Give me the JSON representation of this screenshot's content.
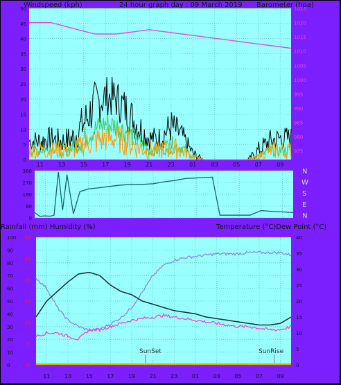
{
  "header": {
    "left_label": "Windspeed (kph)",
    "title": "24 hour graph day : 09 March 2019",
    "right_label": "Barometer (hpa)"
  },
  "lower_header": {
    "left_label": "Rainfall (mm)  Humidity (%)",
    "right_label": "Temperature (°C)Dew Point (°C)"
  },
  "colors": {
    "frame": "#7b1fff",
    "plot_bg": "#99ffff",
    "grid": "#66c2c2",
    "wind_gust": "#000000",
    "wind_avg": "#ff9900",
    "wind_light": "#33cc66",
    "barometer": "#ee44ee",
    "direction": "#1d5e7a",
    "temperature": "#1a3a3a",
    "dew_point": "#ee44ee",
    "humidity": "#8888ee",
    "rain_axis": "#ff2222",
    "text": "#111111"
  },
  "chart_data": [
    {
      "type": "line",
      "title": "24 hour graph day : 09 March 2019",
      "x_tick_labels": [
        "11",
        "13",
        "15",
        "17",
        "19",
        "21",
        "23",
        "01",
        "03",
        "05",
        "07",
        "09"
      ],
      "x_hours_elapsed": [
        0,
        24
      ],
      "left_axis": {
        "label": "Windspeed (kph)",
        "range": [
          0,
          50
        ],
        "ticks": [
          0,
          5,
          10,
          15,
          20,
          25,
          30,
          35,
          40,
          45,
          50
        ]
      },
      "right_axis": {
        "label": "Barometer (hpa)",
        "range": [
          972,
          1025
        ],
        "ticks": [
          975,
          980,
          985,
          990,
          995,
          1000,
          1005,
          1010,
          1015,
          1020,
          1025
        ]
      },
      "series": [
        {
          "name": "Barometer (hpa)",
          "axis": "right",
          "style": "line",
          "x": [
            0,
            1,
            2,
            3,
            4,
            5,
            6,
            7,
            8,
            9,
            10,
            11,
            12,
            13,
            14,
            15,
            16,
            17,
            18,
            19,
            20,
            21,
            22,
            23,
            24
          ],
          "values": [
            1020,
            1020,
            1020,
            1019,
            1018,
            1017,
            1016,
            1016,
            1016,
            1016.5,
            1017,
            1017.5,
            1017,
            1016.5,
            1016,
            1015.5,
            1015,
            1014.5,
            1014,
            1013.5,
            1013,
            1012.5,
            1012,
            1011.5,
            1011
          ]
        },
        {
          "name": "Wind gust",
          "axis": "left",
          "style": "spiky",
          "x": [
            0,
            1,
            2,
            3,
            4,
            5,
            6,
            7,
            8,
            9,
            10,
            11,
            12,
            13,
            14,
            15,
            16,
            17,
            18,
            19,
            20,
            21,
            22,
            23,
            24
          ],
          "values": [
            6,
            6,
            7,
            6,
            7,
            12,
            18,
            21,
            20,
            16,
            11,
            7,
            7,
            11,
            8,
            2,
            0,
            0,
            0,
            0,
            0,
            3,
            6,
            7,
            7
          ],
          "spread": [
            4,
            4,
            4,
            4,
            5,
            7,
            8,
            7,
            7,
            7,
            6,
            4,
            4,
            6,
            4,
            2,
            0,
            0,
            0,
            0,
            0,
            3,
            4,
            4,
            4
          ]
        },
        {
          "name": "Wind light",
          "axis": "left",
          "style": "spiky",
          "x": [
            0,
            1,
            2,
            3,
            4,
            5,
            6,
            7,
            8,
            9,
            10,
            11,
            12,
            13,
            14,
            15,
            16,
            17,
            18,
            19,
            20,
            21,
            22,
            23,
            24
          ],
          "values": [
            3,
            3,
            4,
            3,
            4,
            7,
            10,
            12,
            11,
            9,
            6,
            3,
            3,
            5,
            4,
            1,
            0,
            0,
            0,
            0,
            0,
            1,
            3,
            3,
            3
          ],
          "spread": [
            2,
            2,
            2,
            2,
            3,
            4,
            4,
            4,
            4,
            4,
            3,
            2,
            2,
            3,
            2,
            1,
            0,
            0,
            0,
            0,
            0,
            1,
            2,
            2,
            2
          ]
        },
        {
          "name": "Wind average",
          "axis": "left",
          "style": "spiky",
          "x": [
            0,
            1,
            2,
            3,
            4,
            5,
            6,
            7,
            8,
            9,
            10,
            11,
            12,
            13,
            14,
            15,
            16,
            17,
            18,
            19,
            20,
            21,
            22,
            23,
            24
          ],
          "values": [
            3,
            3,
            3,
            3,
            3,
            5,
            6,
            7,
            7,
            6,
            4,
            3,
            3,
            4,
            3,
            1,
            0,
            0,
            0,
            0,
            0,
            1,
            3,
            3,
            3
          ],
          "spread": [
            3,
            3,
            3,
            3,
            3,
            4,
            5,
            5,
            5,
            5,
            4,
            3,
            3,
            4,
            3,
            1,
            0,
            0,
            0,
            0,
            0,
            1,
            3,
            3,
            3
          ]
        }
      ],
      "grid": true
    },
    {
      "type": "line",
      "title": "",
      "y_labels": [
        "N",
        "W",
        "S",
        "E",
        "N"
      ],
      "left_axis": {
        "range": [
          0,
          360
        ],
        "ticks": [
          0,
          90,
          180,
          270,
          360
        ]
      },
      "series": [
        {
          "name": "Wind direction",
          "axis": "left",
          "style": "line",
          "x": [
            0,
            0.5,
            0.9,
            1.4,
            1.8,
            2.2,
            2.6,
            3.0,
            3.6,
            4.2,
            5.0,
            6.0,
            7.0,
            8.0,
            9.0,
            10.0,
            11.0,
            12.0,
            13.0,
            14.0,
            16.5,
            17.2,
            18.0,
            19.0,
            20.0,
            21.0,
            22.0,
            23.0,
            24.0
          ],
          "values": [
            40,
            10,
            15,
            12,
            20,
            350,
            60,
            330,
            30,
            200,
            220,
            230,
            240,
            250,
            255,
            255,
            260,
            275,
            285,
            300,
            310,
            20,
            20,
            20,
            20,
            55,
            50,
            45,
            40
          ]
        }
      ],
      "grid": true
    },
    {
      "type": "line",
      "title": "",
      "x_tick_labels": [
        "11",
        "13",
        "15",
        "17",
        "19",
        "21",
        "23",
        "01",
        "03",
        "05",
        "07",
        "09"
      ],
      "annotations": [
        {
          "text": "SunSet",
          "x": 10.3
        },
        {
          "text": "SunRise",
          "x": 22.4
        }
      ],
      "left_axis": {
        "label": "Humidity (%)",
        "range": [
          0,
          100
        ],
        "ticks": [
          0,
          10,
          20,
          30,
          40,
          50,
          60,
          70,
          80,
          90,
          100
        ]
      },
      "rain_axis": {
        "label": "Rainfall (mm)",
        "ticks": [
          0,
          5,
          10,
          15,
          20,
          25,
          30
        ]
      },
      "right_axis": {
        "label": "Temperature (°C)",
        "range": [
          0,
          40
        ],
        "ticks": [
          0,
          5,
          10,
          15,
          20,
          25,
          30,
          35,
          40
        ]
      },
      "series": [
        {
          "name": "Humidity (%)",
          "axis": "left",
          "style": "line",
          "x": [
            0,
            1,
            2,
            3,
            4,
            5,
            6,
            7,
            8,
            9,
            10,
            11,
            12,
            13,
            14,
            15,
            16,
            17,
            18,
            19,
            20,
            21,
            22,
            23,
            24
          ],
          "values": [
            68,
            60,
            45,
            35,
            30,
            27,
            28,
            32,
            37,
            45,
            57,
            70,
            78,
            82,
            84,
            85,
            86,
            87,
            87,
            87,
            88,
            88,
            88,
            88,
            86
          ]
        },
        {
          "name": "Temperature (°C)",
          "axis": "right",
          "style": "line",
          "x": [
            0,
            1,
            2,
            3,
            4,
            5,
            6,
            7,
            8,
            9,
            10,
            11,
            12,
            13,
            14,
            15,
            16,
            17,
            18,
            19,
            20,
            21,
            22,
            23,
            24
          ],
          "values": [
            15,
            20,
            23,
            26,
            28.5,
            29,
            28,
            25,
            23,
            22,
            20,
            19,
            18,
            17,
            16.5,
            16,
            15,
            14.5,
            14,
            13.5,
            13,
            12.5,
            12.5,
            13,
            15
          ]
        },
        {
          "name": "Dew Point (°C)",
          "axis": "right",
          "style": "line",
          "x": [
            0,
            1,
            2,
            3,
            4,
            5,
            6,
            7,
            8,
            9,
            10,
            11,
            12,
            13,
            14,
            15,
            16,
            17,
            18,
            19,
            20,
            21,
            22,
            23,
            24
          ],
          "values": [
            9,
            10,
            10,
            9,
            8,
            11,
            11,
            12,
            13,
            14,
            14.5,
            15,
            15.5,
            15,
            14.5,
            14,
            13.5,
            13,
            12.5,
            12,
            12,
            11.5,
            11,
            11,
            12
          ]
        }
      ],
      "grid": true
    }
  ]
}
